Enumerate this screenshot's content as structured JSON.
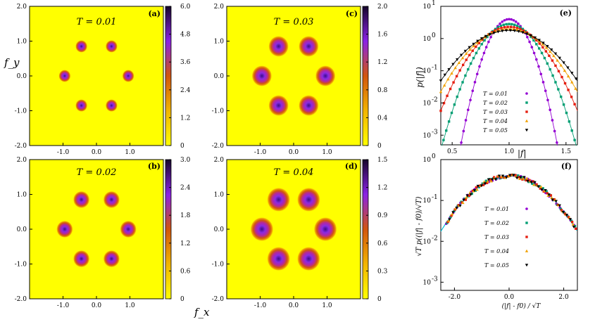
{
  "figure": {
    "x_axis_label": "f_x",
    "y_axis_label": "f_y"
  },
  "chart_data": [
    {
      "id": "a",
      "type": "heatmap",
      "panel_label": "(a)",
      "title": "T = 0.01",
      "xlim": [
        -2.0,
        2.0
      ],
      "ylim": [
        -2.0,
        2.0
      ],
      "x_ticks": [
        "-1.0",
        "0.0",
        "1.0"
      ],
      "y_ticks": [
        "2.0",
        "1.0",
        "0.0",
        "-1.0",
        "-2.0"
      ],
      "colorbar": {
        "range": [
          0,
          6.0
        ],
        "ticks": [
          "6.0",
          "4.8",
          "3.6",
          "2.4",
          "1.2",
          "0"
        ]
      },
      "peaks": [
        [
          0.45,
          0.85
        ],
        [
          -0.45,
          0.85
        ],
        [
          0.95,
          0.0
        ],
        [
          -0.95,
          0.0
        ],
        [
          0.45,
          -0.85
        ],
        [
          -0.45,
          -0.85
        ]
      ],
      "peak_width": 0.08
    },
    {
      "id": "b",
      "type": "heatmap",
      "panel_label": "(b)",
      "title": "T = 0.02",
      "xlim": [
        -2.0,
        2.0
      ],
      "ylim": [
        -2.0,
        2.0
      ],
      "x_ticks": [
        "-1.0",
        "0.0",
        "1.0"
      ],
      "y_ticks": [
        "2.0",
        "1.0",
        "0.0",
        "-1.0",
        "-2.0"
      ],
      "colorbar": {
        "range": [
          0,
          3.0
        ],
        "ticks": [
          "3.0",
          "2.4",
          "1.8",
          "1.2",
          "0.6",
          "0"
        ]
      },
      "peaks": [
        [
          0.45,
          0.85
        ],
        [
          -0.45,
          0.85
        ],
        [
          0.95,
          0.0
        ],
        [
          -0.95,
          0.0
        ],
        [
          0.45,
          -0.85
        ],
        [
          -0.45,
          -0.85
        ]
      ],
      "peak_width": 0.11
    },
    {
      "id": "c",
      "type": "heatmap",
      "panel_label": "(c)",
      "title": "T = 0.03",
      "xlim": [
        -2.0,
        2.0
      ],
      "ylim": [
        -2.0,
        2.0
      ],
      "x_ticks": [
        "-1.0",
        "0.0",
        "1.0"
      ],
      "y_ticks": [
        "2.0",
        "1.0",
        "0.0",
        "-1.0",
        "-2.0"
      ],
      "colorbar": {
        "range": [
          0,
          2.0
        ],
        "ticks": [
          "2.0",
          "1.6",
          "1.2",
          "0.8",
          "0.4",
          "0"
        ]
      },
      "peaks": [
        [
          0.45,
          0.85
        ],
        [
          -0.45,
          0.85
        ],
        [
          0.95,
          0.0
        ],
        [
          -0.95,
          0.0
        ],
        [
          0.45,
          -0.85
        ],
        [
          -0.45,
          -0.85
        ]
      ],
      "peak_width": 0.135
    },
    {
      "id": "d",
      "type": "heatmap",
      "panel_label": "(d)",
      "title": "T = 0.04",
      "xlim": [
        -2.0,
        2.0
      ],
      "ylim": [
        -2.0,
        2.0
      ],
      "x_ticks": [
        "-1.0",
        "0.0",
        "1.0"
      ],
      "y_ticks": [
        "2.0",
        "1.0",
        "0.0",
        "-1.0",
        "-2.0"
      ],
      "colorbar": {
        "range": [
          0,
          1.5
        ],
        "ticks": [
          "1.5",
          "1.2",
          "0.9",
          "0.6",
          "0.3",
          "0"
        ]
      },
      "peaks": [
        [
          0.45,
          0.85
        ],
        [
          -0.45,
          0.85
        ],
        [
          0.95,
          0.0
        ],
        [
          -0.95,
          0.0
        ],
        [
          0.45,
          -0.85
        ],
        [
          -0.45,
          -0.85
        ]
      ],
      "peak_width": 0.155
    },
    {
      "id": "e",
      "type": "scatter",
      "panel_label": "(e)",
      "xlabel": "|f|",
      "ylabel": "p(|f|)",
      "xlim": [
        0.4,
        1.6
      ],
      "ylim_log10": [
        -3.3,
        1.0
      ],
      "x_ticks": [
        0.5,
        1.0,
        1.5
      ],
      "x_tick_labels": [
        "0.5",
        "1.0",
        "1.5"
      ],
      "y_ticks_log10": [
        1,
        0,
        -1,
        -2,
        -3
      ],
      "y_tick_labels": [
        "10",
        "10",
        "10",
        "10",
        "10"
      ],
      "y_tick_exponents": [
        "1",
        "0",
        "-1",
        "-2",
        "-3"
      ],
      "legend_position": "bottom-right",
      "series": [
        {
          "name": "T = 0.01",
          "color": "#9400d3",
          "marker": "circle",
          "T": 0.01
        },
        {
          "name": "T = 0.02",
          "color": "#009e73",
          "marker": "square",
          "T": 0.02
        },
        {
          "name": "T = 0.03",
          "color": "#e51e10",
          "marker": "square",
          "T": 0.03
        },
        {
          "name": "T = 0.04",
          "color": "#f0a000",
          "marker": "triangle",
          "T": 0.04
        },
        {
          "name": "T = 0.05",
          "color": "#000000",
          "marker": "inv-triangle",
          "T": 0.05
        }
      ],
      "f0": 1.0
    },
    {
      "id": "f",
      "type": "scatter",
      "panel_label": "(f)",
      "xlabel": "(|f| - f0) / √T",
      "ylabel": "√T p((|f| - f0)/√T)",
      "xlim": [
        -2.5,
        2.5
      ],
      "ylim_log10": [
        -3.2,
        0.0
      ],
      "x_ticks": [
        -2.0,
        0.0,
        2.0
      ],
      "x_tick_labels": [
        "-2.0",
        "0.0",
        "2.0"
      ],
      "y_ticks_log10": [
        0,
        -1,
        -2,
        -3
      ],
      "y_tick_labels": [
        "10",
        "10",
        "10",
        "10"
      ],
      "y_tick_exponents": [
        "0",
        "-1",
        "-2",
        "-3"
      ],
      "legend_position": "center",
      "series": [
        {
          "name": "T = 0.01",
          "color": "#9400d3",
          "marker": "circle"
        },
        {
          "name": "T = 0.02",
          "color": "#009e73",
          "marker": "square"
        },
        {
          "name": "T = 0.03",
          "color": "#e51e10",
          "marker": "square"
        },
        {
          "name": "T = 0.04",
          "color": "#f0a000",
          "marker": "triangle"
        },
        {
          "name": "T = 0.05",
          "color": "#000000",
          "marker": "inv-triangle"
        }
      ],
      "fit_color": "#00bcd4"
    }
  ]
}
